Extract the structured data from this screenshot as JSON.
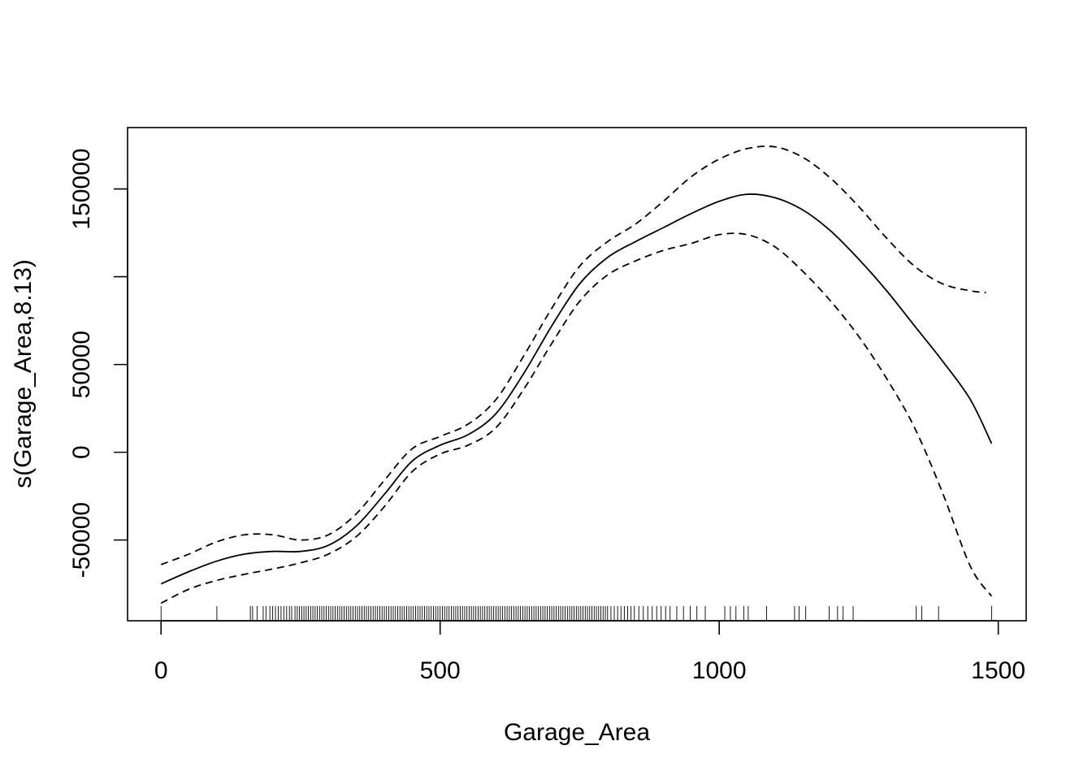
{
  "chart_data": {
    "type": "line",
    "title": "",
    "xlabel": "Garage_Area",
    "ylabel": "s(Garage_Area,8.13)",
    "xlim": [
      -60,
      1550
    ],
    "ylim": [
      -96000,
      185000
    ],
    "x_ticks": [
      0,
      500,
      1000,
      1500
    ],
    "x_tick_labels": [
      "0",
      "500",
      "1000",
      "1500"
    ],
    "y_ticks": [
      -50000,
      0,
      50000,
      100000,
      150000
    ],
    "y_tick_labels": [
      "-50000",
      "0",
      "50000",
      "",
      "150000"
    ],
    "grid": false,
    "legend": "none",
    "series": [
      {
        "role": "estimate",
        "style": "solid",
        "x": [
          0,
          50,
          100,
          150,
          200,
          250,
          300,
          350,
          400,
          450,
          500,
          550,
          600,
          650,
          700,
          750,
          800,
          850,
          900,
          950,
          1000,
          1050,
          1100,
          1150,
          1200,
          1250,
          1300,
          1350,
          1400,
          1450,
          1488
        ],
        "y": [
          -75000,
          -68000,
          -62000,
          -58000,
          -56500,
          -56500,
          -53000,
          -42000,
          -24000,
          -5000,
          4000,
          10000,
          22000,
          45000,
          72000,
          96000,
          111000,
          120000,
          128000,
          136000,
          143000,
          147000,
          145000,
          138000,
          126000,
          110000,
          92000,
          72000,
          52000,
          30000,
          5000
        ]
      },
      {
        "role": "upper confidence band",
        "style": "dashed",
        "x": [
          0,
          50,
          100,
          150,
          200,
          250,
          300,
          350,
          400,
          450,
          500,
          550,
          600,
          650,
          700,
          750,
          800,
          850,
          900,
          950,
          1000,
          1050,
          1100,
          1150,
          1200,
          1250,
          1300,
          1350,
          1400,
          1450,
          1478
        ],
        "y": [
          -64000,
          -58000,
          -51000,
          -47000,
          -47000,
          -50000,
          -47000,
          -35000,
          -16000,
          2000,
          9000,
          16000,
          30000,
          55000,
          82000,
          106000,
          120000,
          130000,
          143000,
          157000,
          167000,
          173000,
          174000,
          168000,
          156000,
          140000,
          122000,
          106000,
          96000,
          92000,
          91000
        ]
      },
      {
        "role": "lower confidence band",
        "style": "dashed",
        "x": [
          0,
          50,
          100,
          150,
          200,
          250,
          300,
          350,
          400,
          450,
          500,
          550,
          600,
          650,
          700,
          750,
          800,
          850,
          900,
          950,
          1000,
          1050,
          1100,
          1150,
          1200,
          1250,
          1300,
          1350,
          1400,
          1450,
          1488
        ],
        "y": [
          -86000,
          -78000,
          -73000,
          -69500,
          -66500,
          -63000,
          -58000,
          -48000,
          -31000,
          -11000,
          -1000,
          4000,
          14000,
          36000,
          62000,
          86000,
          101000,
          109000,
          115000,
          119000,
          124000,
          124000,
          117000,
          103000,
          86000,
          66000,
          42000,
          14000,
          -23000,
          -65000,
          -82000
        ]
      }
    ],
    "rug_x": [
      0,
      100,
      160,
      164,
      172,
      183,
      188,
      195,
      200,
      205,
      210,
      215,
      220,
      225,
      230,
      234,
      240,
      244,
      248,
      252,
      256,
      260,
      264,
      268,
      272,
      276,
      280,
      284,
      288,
      292,
      296,
      300,
      304,
      308,
      312,
      316,
      320,
      324,
      328,
      332,
      336,
      340,
      344,
      348,
      352,
      356,
      360,
      364,
      368,
      372,
      376,
      380,
      384,
      388,
      392,
      396,
      400,
      404,
      408,
      412,
      416,
      420,
      424,
      428,
      432,
      436,
      440,
      444,
      448,
      452,
      456,
      460,
      464,
      468,
      472,
      476,
      480,
      484,
      488,
      492,
      496,
      500,
      504,
      508,
      512,
      516,
      520,
      524,
      528,
      532,
      536,
      540,
      544,
      548,
      552,
      556,
      560,
      564,
      568,
      572,
      576,
      580,
      584,
      588,
      592,
      596,
      600,
      604,
      608,
      612,
      616,
      620,
      624,
      628,
      632,
      636,
      640,
      644,
      648,
      652,
      656,
      660,
      664,
      668,
      672,
      676,
      680,
      684,
      688,
      692,
      696,
      700,
      704,
      708,
      712,
      716,
      720,
      724,
      728,
      732,
      736,
      740,
      744,
      748,
      752,
      756,
      760,
      764,
      768,
      772,
      776,
      780,
      784,
      788,
      792,
      796,
      800,
      806,
      812,
      818,
      824,
      830,
      836,
      842,
      848,
      856,
      864,
      872,
      880,
      888,
      896,
      904,
      912,
      924,
      936,
      948,
      960,
      975,
      1010,
      1020,
      1030,
      1044,
      1052,
      1085,
      1135,
      1143,
      1155,
      1197,
      1212,
      1222,
      1240,
      1353,
      1363,
      1393,
      1488
    ]
  }
}
